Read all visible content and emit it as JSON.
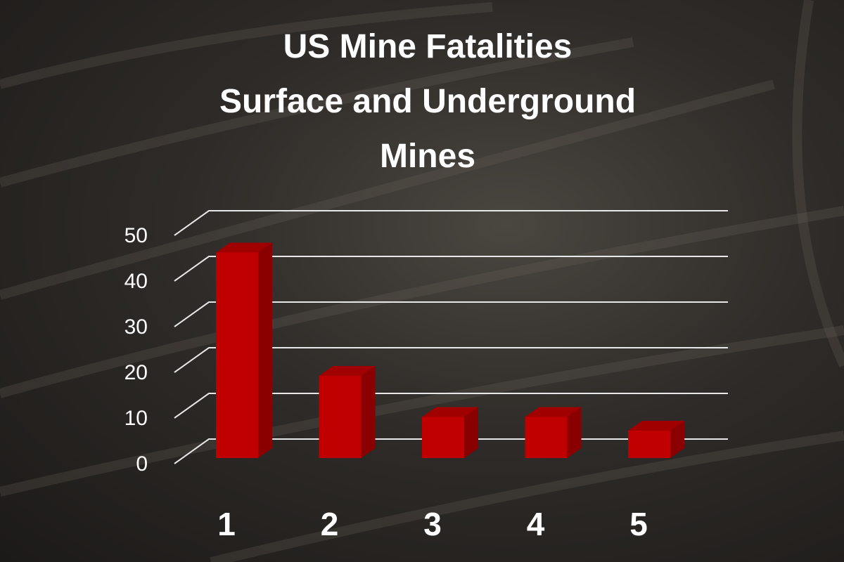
{
  "chart_data": {
    "type": "bar3d",
    "title": "US Mine Fatalities",
    "subtitle": "Surface and Underground Mines",
    "categories": [
      "1",
      "2",
      "3",
      "4",
      "5"
    ],
    "values": [
      45,
      18,
      9,
      9,
      6
    ],
    "color": "#c00000",
    "ylim": [
      0,
      50
    ],
    "yticks": [
      0,
      10,
      20,
      30,
      40,
      50
    ],
    "grid": true
  }
}
